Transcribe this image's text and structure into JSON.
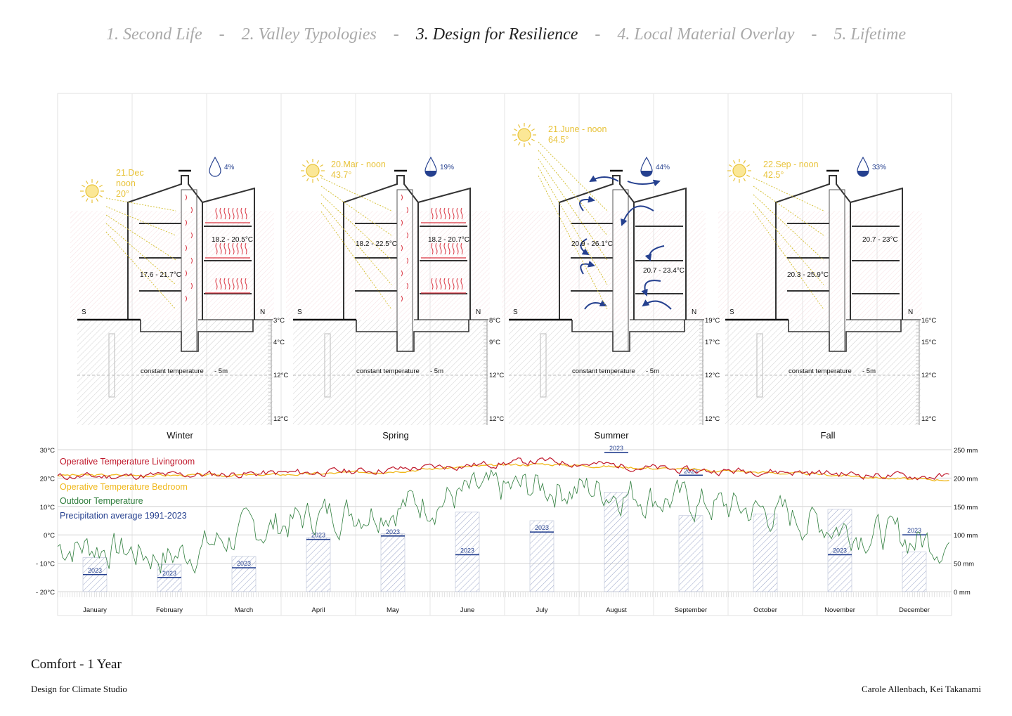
{
  "nav": {
    "items": [
      {
        "label": "1. Second Life",
        "active": false
      },
      {
        "label": "2. Valley Typologies",
        "active": false
      },
      {
        "label": "3. Design for Resilience",
        "active": true
      },
      {
        "label": "4. Local Material Overlay",
        "active": false
      },
      {
        "label": "5. Lifetime",
        "active": false
      }
    ],
    "separator": "-"
  },
  "sections": [
    {
      "season": "Winter",
      "sun_date": "21.Dec",
      "sun_time": "noon",
      "sun_angle": "20°",
      "precip_share": "4%",
      "drop_fill": 0.04,
      "south": "S",
      "north": "N",
      "room_temps": [
        "18.2 - 20.5°C",
        "17.6 - 21.7°C"
      ],
      "ground_label": "constant temperature",
      "ground_depth": "- 5m",
      "ground_temps": [
        "3°C",
        "4°C",
        "12°C",
        "12°C"
      ]
    },
    {
      "season": "Spring",
      "sun_date": "20.Mar - noon",
      "sun_time": "",
      "sun_angle": "43.7°",
      "precip_share": "19%",
      "drop_fill": 0.5,
      "south": "S",
      "north": "N",
      "room_temps": [
        "18.2 - 22.5°C",
        "18.2 - 20.7°C"
      ],
      "ground_label": "constant temperature",
      "ground_depth": "- 5m",
      "ground_temps": [
        "8°C",
        "9°C",
        "12°C",
        "12°C"
      ]
    },
    {
      "season": "Summer",
      "sun_date": "21.June - noon",
      "sun_time": "",
      "sun_angle": "64.5°",
      "precip_share": "44%",
      "drop_fill": 0.55,
      "south": "S",
      "north": "N",
      "room_temps": [
        "20.9 - 26.1°C",
        "20.7 - 23.4°C"
      ],
      "ground_label": "constant temperature",
      "ground_depth": "- 5m",
      "ground_temps": [
        "19°C",
        "17°C",
        "12°C",
        "12°C"
      ]
    },
    {
      "season": "Fall",
      "sun_date": "22.Sep - noon",
      "sun_time": "",
      "sun_angle": "42.5°",
      "precip_share": "33%",
      "drop_fill": 0.5,
      "south": "S",
      "north": "N",
      "room_temps": [
        "20.7 - 23°C",
        "20.3 - 25.9°C"
      ],
      "ground_label": "constant temperature",
      "ground_depth": "- 5m",
      "ground_temps": [
        "16°C",
        "15°C",
        "12°C",
        "12°C"
      ]
    }
  ],
  "colors": {
    "sun": "#e8c33a",
    "living": "#c0182b",
    "bedroom": "#f0b81c",
    "outdoor": "#2e7d3c",
    "precip": "#25408f",
    "heat": "#d9323f"
  },
  "chart_data": {
    "type": "line",
    "title": "",
    "left_axis": {
      "ticks": [
        "30°C",
        "20°C",
        "10°C",
        "0°C",
        "- 10°C",
        "- 20°C"
      ],
      "range": [
        -20,
        30
      ]
    },
    "right_axis": {
      "ticks": [
        "250 mm",
        "200 mm",
        "150 mm",
        "100 mm",
        "50 mm",
        "0 mm"
      ],
      "range": [
        0,
        250
      ]
    },
    "categories": [
      "January",
      "February",
      "March",
      "April",
      "May",
      "June",
      "July",
      "August",
      "September",
      "October",
      "November",
      "December"
    ],
    "series": [
      {
        "name": "Operative Temperature Livingroom",
        "axis": "left",
        "values": [
          20.5,
          21.0,
          21.5,
          22.0,
          23.0,
          24.5,
          26.0,
          24.5,
          22.5,
          22.5,
          21.5,
          20.5
        ]
      },
      {
        "name": "Operative Temperature Bedroom",
        "axis": "left",
        "values": [
          21.0,
          21.0,
          21.0,
          21.5,
          22.5,
          24.0,
          25.0,
          24.0,
          23.0,
          22.0,
          21.0,
          19.5
        ]
      },
      {
        "name": "Outdoor Temperature",
        "axis": "left",
        "values": [
          -4.0,
          -8.0,
          0.5,
          7.0,
          10.0,
          14.0,
          17.0,
          15.5,
          11.5,
          8.0,
          3.0,
          -2.0
        ]
      },
      {
        "name": "Precipitation average 1991-2023",
        "axis": "right",
        "type": "bar",
        "values": [
          60,
          48,
          62,
          95,
          102,
          140,
          125,
          175,
          134,
          137,
          145,
          70
        ]
      }
    ],
    "precip_2023": [
      30,
      25,
      42,
      92,
      98,
      65,
      105,
      245,
      205,
      0,
      65,
      100
    ],
    "label_2023": "2023"
  },
  "footer": {
    "title": "Comfort - 1 Year",
    "studio": "Design for Climate Studio",
    "authors": "Carole Allenbach, Kei Takanami"
  }
}
